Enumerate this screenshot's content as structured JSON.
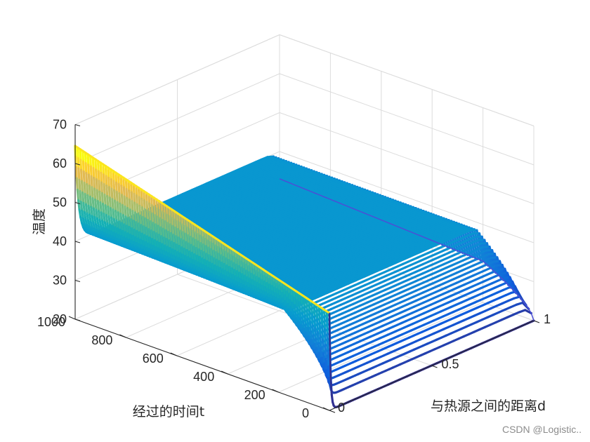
{
  "chart_data": {
    "type": "surface-3d",
    "xlabel": "与热源之间的距离d",
    "ylabel": "经过的时间t",
    "zlabel": "温度",
    "xlim": [
      0,
      1
    ],
    "ylim": [
      0,
      1000
    ],
    "zlim": [
      20,
      70
    ],
    "x_ticks": [
      0,
      0.5,
      1
    ],
    "x_tick_labels": [
      "0",
      "0.5",
      "1"
    ],
    "y_ticks": [
      0,
      200,
      400,
      600,
      800,
      1000
    ],
    "y_tick_labels": [
      "0",
      "200",
      "400",
      "600",
      "800",
      "1000"
    ],
    "z_ticks": [
      20,
      30,
      40,
      50,
      60,
      70
    ],
    "z_tick_labels": [
      "20",
      "30",
      "40",
      "50",
      "60",
      "70"
    ],
    "colormap": "parula",
    "grid": true,
    "heat_source_temperature": 64.5,
    "initial_temperature": 20,
    "far_edge_temperature_at_end": 40,
    "series": [
      {
        "t": 0,
        "profile_d": [
          0,
          0.1,
          0.2,
          0.3,
          0.4,
          0.5,
          0.6,
          0.7,
          0.8,
          0.9,
          1.0
        ],
        "profile_T": [
          45,
          20,
          20,
          20,
          20,
          20,
          20,
          20,
          20,
          20,
          20
        ]
      },
      {
        "t": 200,
        "profile_d": [
          0,
          0.1,
          0.2,
          0.3,
          0.4,
          0.5,
          0.6,
          0.7,
          0.8,
          0.9,
          1.0
        ],
        "profile_T": [
          50,
          40,
          39,
          39,
          39,
          39,
          39,
          39,
          39,
          39,
          39
        ]
      },
      {
        "t": 1000,
        "profile_d": [
          0,
          0.1,
          0.2,
          0.3,
          0.4,
          0.5,
          0.6,
          0.7,
          0.8,
          0.9,
          1.0
        ],
        "profile_T": [
          64.5,
          45,
          42,
          41,
          41,
          40.5,
          40.5,
          40.5,
          40.5,
          40.5,
          40
        ]
      }
    ]
  },
  "watermark": "CSDN @Logistic.."
}
